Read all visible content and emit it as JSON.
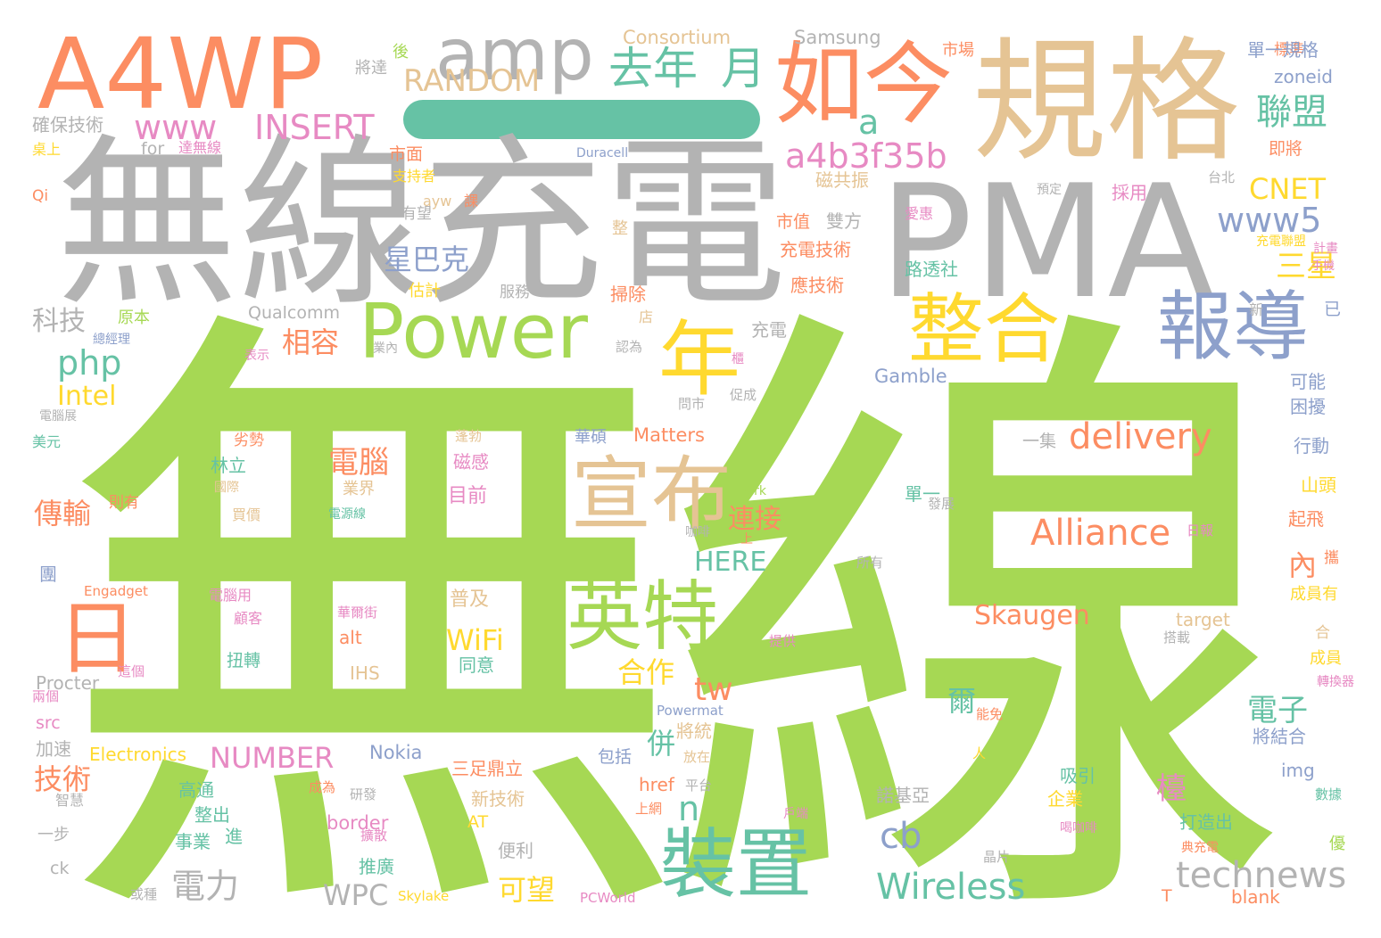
{
  "wordcloud": {
    "background": "#ffffff",
    "palette": {
      "green": "#a6d854",
      "grey": "#b3b3b3",
      "orange": "#fc8d62",
      "tan": "#e5c494",
      "teal": "#66c2a5",
      "blue": "#8da0cb",
      "pink": "#e78ac3",
      "yellow": "#ffd92f"
    },
    "words": [
      {
        "text": "無線",
        "color": "green"
      },
      {
        "text": "無線充電",
        "color": "grey"
      },
      {
        "text": "PMA",
        "color": "grey"
      },
      {
        "text": "規格",
        "color": "tan"
      },
      {
        "text": "A4WP",
        "color": "orange"
      },
      {
        "text": "如今",
        "color": "orange"
      },
      {
        "text": "amp",
        "color": "grey"
      },
      {
        "text": "Power",
        "color": "green"
      },
      {
        "text": "宣布",
        "color": "tan"
      },
      {
        "text": "英特",
        "color": "green"
      },
      {
        "text": "裝置",
        "color": "teal"
      },
      {
        "text": "整合",
        "color": "yellow"
      },
      {
        "text": "報導",
        "color": "blue"
      },
      {
        "text": "年",
        "color": "yellow"
      },
      {
        "text": "日",
        "color": "orange"
      },
      {
        "text": "去年",
        "color": "teal"
      },
      {
        "text": "月",
        "color": "teal"
      },
      {
        "text": "RANDOM",
        "color": "tan"
      },
      {
        "text": "Consortium",
        "color": "tan"
      },
      {
        "text": "Samsung",
        "color": "grey"
      },
      {
        "text": "www",
        "color": "pink"
      },
      {
        "text": "INSERT",
        "color": "pink"
      },
      {
        "text": "a4b3f35b",
        "color": "pink"
      },
      {
        "text": "a",
        "color": "teal"
      },
      {
        "text": "聯盟",
        "color": "teal"
      },
      {
        "text": "CNET",
        "color": "yellow"
      },
      {
        "text": "www5",
        "color": "blue"
      },
      {
        "text": "三星",
        "color": "yellow"
      },
      {
        "text": "delivery",
        "color": "orange"
      },
      {
        "text": "Alliance",
        "color": "orange"
      },
      {
        "text": "Wireless",
        "color": "teal"
      },
      {
        "text": "technews",
        "color": "grey"
      },
      {
        "text": "Skaugen",
        "color": "orange"
      },
      {
        "text": "php",
        "color": "teal"
      },
      {
        "text": "Intel",
        "color": "yellow"
      },
      {
        "text": "星巴克",
        "color": "blue"
      },
      {
        "text": "相容",
        "color": "orange"
      },
      {
        "text": "科技",
        "color": "grey"
      },
      {
        "text": "電腦",
        "color": "orange"
      },
      {
        "text": "傳輸",
        "color": "orange"
      },
      {
        "text": "技術",
        "color": "orange"
      },
      {
        "text": "電力",
        "color": "grey"
      },
      {
        "text": "NUMBER",
        "color": "pink"
      },
      {
        "text": "WPC",
        "color": "grey"
      },
      {
        "text": "可望",
        "color": "yellow"
      },
      {
        "text": "cb",
        "color": "blue"
      },
      {
        "text": "n",
        "color": "teal"
      },
      {
        "text": "tw",
        "color": "orange"
      },
      {
        "text": "WiFi",
        "color": "yellow"
      },
      {
        "text": "HERE",
        "color": "teal"
      },
      {
        "text": "連接",
        "color": "orange"
      },
      {
        "text": "合作",
        "color": "yellow"
      },
      {
        "text": "電子",
        "color": "teal"
      },
      {
        "text": "內",
        "color": "orange"
      },
      {
        "text": "檯",
        "color": "pink"
      },
      {
        "text": "併",
        "color": "teal"
      },
      {
        "text": "爾",
        "color": "teal"
      },
      {
        "text": "Matters",
        "color": "orange"
      },
      {
        "text": "Gamble",
        "color": "blue"
      },
      {
        "text": "Qualcomm",
        "color": "grey"
      },
      {
        "text": "Nokia",
        "color": "blue"
      },
      {
        "text": "Electronics",
        "color": "yellow"
      },
      {
        "text": "Procter",
        "color": "grey"
      },
      {
        "text": "Engadget",
        "color": "orange"
      },
      {
        "text": "Powermat",
        "color": "blue"
      },
      {
        "text": "PCWorld",
        "color": "pink"
      },
      {
        "text": "Skylake",
        "color": "yellow"
      },
      {
        "text": "Duracell",
        "color": "blue"
      },
      {
        "text": "zoneid",
        "color": "blue"
      },
      {
        "text": "target",
        "color": "tan"
      },
      {
        "text": "border",
        "color": "pink"
      },
      {
        "text": "href",
        "color": "orange"
      },
      {
        "text": "alt",
        "color": "orange"
      },
      {
        "text": "IHS",
        "color": "tan"
      },
      {
        "text": "img",
        "color": "blue"
      },
      {
        "text": "src",
        "color": "pink"
      },
      {
        "text": "blank",
        "color": "orange"
      },
      {
        "text": "ck",
        "color": "grey"
      },
      {
        "text": "for",
        "color": "grey"
      },
      {
        "text": "Qi",
        "color": "orange"
      },
      {
        "text": "AT",
        "color": "yellow"
      },
      {
        "text": "T",
        "color": "orange"
      },
      {
        "text": "Kirk",
        "color": "green"
      },
      {
        "text": "ayw",
        "color": "tan"
      },
      {
        "text": "確保技術",
        "color": "grey"
      },
      {
        "text": "將達",
        "color": "grey"
      },
      {
        "text": "後",
        "color": "green"
      },
      {
        "text": "市場",
        "color": "orange"
      },
      {
        "text": "標準",
        "color": "orange"
      },
      {
        "text": "單一規格",
        "color": "blue"
      },
      {
        "text": "桌上",
        "color": "yellow"
      },
      {
        "text": "達無線",
        "color": "pink"
      },
      {
        "text": "市面",
        "color": "orange"
      },
      {
        "text": "支持者",
        "color": "yellow"
      },
      {
        "text": "有望",
        "color": "grey"
      },
      {
        "text": "課",
        "color": "orange"
      },
      {
        "text": "磁共振",
        "color": "tan"
      },
      {
        "text": "採用",
        "color": "pink"
      },
      {
        "text": "台北",
        "color": "grey"
      },
      {
        "text": "即將",
        "color": "orange"
      },
      {
        "text": "預定",
        "color": "grey"
      },
      {
        "text": "整",
        "color": "tan"
      },
      {
        "text": "市值",
        "color": "orange"
      },
      {
        "text": "雙方",
        "color": "grey"
      },
      {
        "text": "愛惠",
        "color": "pink"
      },
      {
        "text": "充電技術",
        "color": "orange"
      },
      {
        "text": "充電聯盟",
        "color": "yellow"
      },
      {
        "text": "計畫",
        "color": "pink"
      },
      {
        "text": "手機",
        "color": "pink"
      },
      {
        "text": "路透社",
        "color": "teal"
      },
      {
        "text": "估計",
        "color": "yellow"
      },
      {
        "text": "掃除",
        "color": "orange"
      },
      {
        "text": "應技術",
        "color": "orange"
      },
      {
        "text": "服務",
        "color": "grey"
      },
      {
        "text": "原本",
        "color": "green"
      },
      {
        "text": "店",
        "color": "tan"
      },
      {
        "text": "充電",
        "color": "grey"
      },
      {
        "text": "新",
        "color": "grey"
      },
      {
        "text": "已",
        "color": "blue"
      },
      {
        "text": "總經理",
        "color": "blue"
      },
      {
        "text": "業內",
        "color": "grey"
      },
      {
        "text": "認為",
        "color": "grey"
      },
      {
        "text": "表示",
        "color": "pink"
      },
      {
        "text": "櫃",
        "color": "pink"
      },
      {
        "text": "可能",
        "color": "blue"
      },
      {
        "text": "電腦展",
        "color": "grey"
      },
      {
        "text": "問市",
        "color": "grey"
      },
      {
        "text": "促成",
        "color": "grey"
      },
      {
        "text": "困擾",
        "color": "blue"
      },
      {
        "text": "美元",
        "color": "teal"
      },
      {
        "text": "劣勢",
        "color": "orange"
      },
      {
        "text": "蓬勃",
        "color": "tan"
      },
      {
        "text": "華碩",
        "color": "blue"
      },
      {
        "text": "行動",
        "color": "blue"
      },
      {
        "text": "一集",
        "color": "grey"
      },
      {
        "text": "林立",
        "color": "teal"
      },
      {
        "text": "磁感",
        "color": "pink"
      },
      {
        "text": "山頭",
        "color": "yellow"
      },
      {
        "text": "國際",
        "color": "tan"
      },
      {
        "text": "業界",
        "color": "tan"
      },
      {
        "text": "目前",
        "color": "pink"
      },
      {
        "text": "單一",
        "color": "teal"
      },
      {
        "text": "起飛",
        "color": "orange"
      },
      {
        "text": "則有",
        "color": "orange"
      },
      {
        "text": "買價",
        "color": "tan"
      },
      {
        "text": "電源線",
        "color": "teal"
      },
      {
        "text": "上",
        "color": "orange"
      },
      {
        "text": "發展",
        "color": "grey"
      },
      {
        "text": "日報",
        "color": "pink"
      },
      {
        "text": "團",
        "color": "blue"
      },
      {
        "text": "咖啡",
        "color": "grey"
      },
      {
        "text": "所有",
        "color": "grey"
      },
      {
        "text": "攜",
        "color": "orange"
      },
      {
        "text": "電腦用",
        "color": "pink"
      },
      {
        "text": "華爾街",
        "color": "pink"
      },
      {
        "text": "普及",
        "color": "tan"
      },
      {
        "text": "成員有",
        "color": "yellow"
      },
      {
        "text": "顧客",
        "color": "pink"
      },
      {
        "text": "合",
        "color": "tan"
      },
      {
        "text": "扭轉",
        "color": "teal"
      },
      {
        "text": "搭載",
        "color": "grey"
      },
      {
        "text": "提供",
        "color": "pink"
      },
      {
        "text": "同意",
        "color": "teal"
      },
      {
        "text": "成員",
        "color": "yellow"
      },
      {
        "text": "這個",
        "color": "pink"
      },
      {
        "text": "轉換器",
        "color": "pink"
      },
      {
        "text": "兩個",
        "color": "pink"
      },
      {
        "text": "將統",
        "color": "tan"
      },
      {
        "text": "能免",
        "color": "orange"
      },
      {
        "text": "將結合",
        "color": "blue"
      },
      {
        "text": "加速",
        "color": "grey"
      },
      {
        "text": "包括",
        "color": "blue"
      },
      {
        "text": "放在",
        "color": "tan"
      },
      {
        "text": "三足鼎立",
        "color": "orange"
      },
      {
        "text": "人",
        "color": "yellow"
      },
      {
        "text": "吸引",
        "color": "teal"
      },
      {
        "text": "企業",
        "color": "yellow"
      },
      {
        "text": "高通",
        "color": "teal"
      },
      {
        "text": "成為",
        "color": "orange"
      },
      {
        "text": "研發",
        "color": "grey"
      },
      {
        "text": "平台",
        "color": "grey"
      },
      {
        "text": "諾基亞",
        "color": "grey"
      },
      {
        "text": "數據",
        "color": "teal"
      },
      {
        "text": "智慧",
        "color": "grey"
      },
      {
        "text": "新技術",
        "color": "tan"
      },
      {
        "text": "打造出",
        "color": "teal"
      },
      {
        "text": "整出",
        "color": "teal"
      },
      {
        "text": "上網",
        "color": "orange"
      },
      {
        "text": "戶端",
        "color": "pink"
      },
      {
        "text": "事業",
        "color": "teal"
      },
      {
        "text": "進",
        "color": "teal"
      },
      {
        "text": "擴散",
        "color": "pink"
      },
      {
        "text": "優",
        "color": "green"
      },
      {
        "text": "一步",
        "color": "grey"
      },
      {
        "text": "便利",
        "color": "grey"
      },
      {
        "text": "喝咖啡",
        "color": "pink"
      },
      {
        "text": "典充電",
        "color": "orange"
      },
      {
        "text": "推廣",
        "color": "teal"
      },
      {
        "text": "晶片",
        "color": "grey"
      },
      {
        "text": "或種",
        "color": "grey"
      }
    ]
  }
}
